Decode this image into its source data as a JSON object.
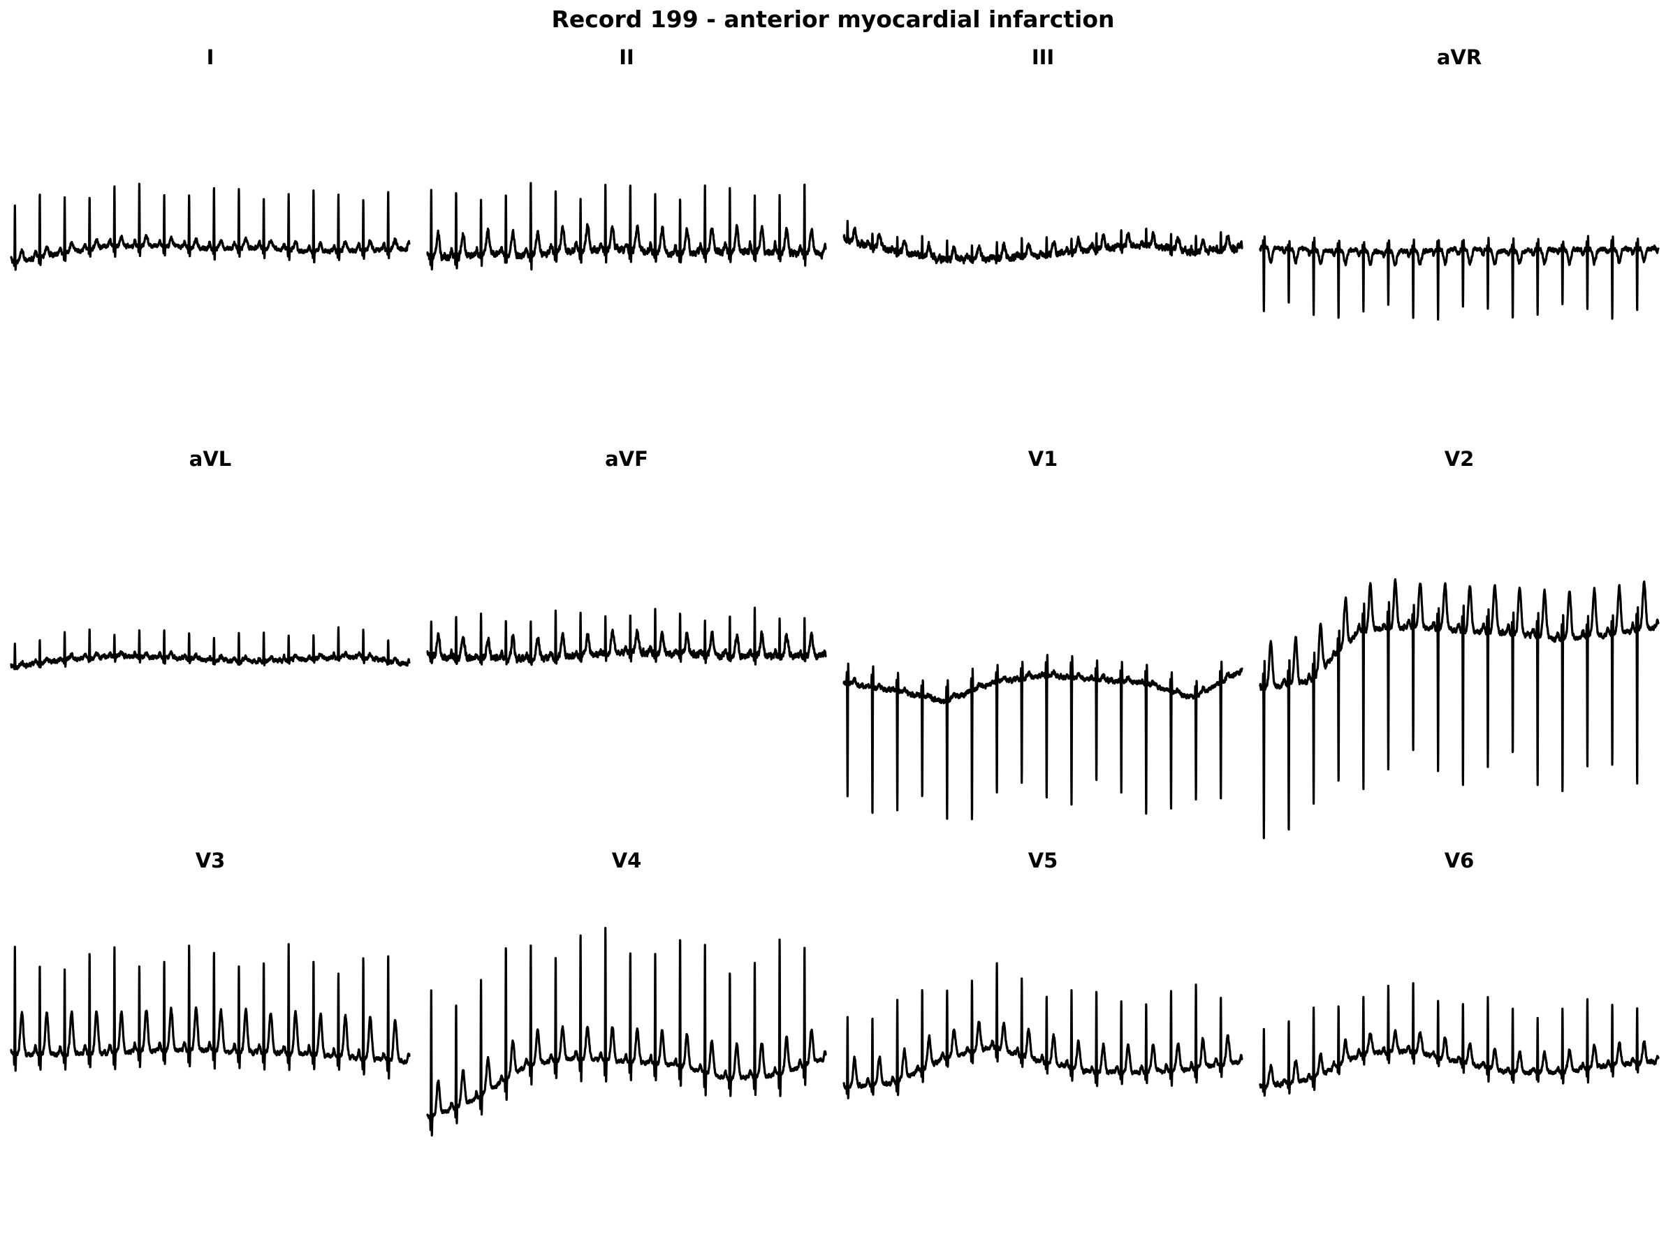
{
  "chart_data": {
    "type": "line",
    "title": "Record 199 - anterior myocardial infarction",
    "layout_grid": "3 rows x 4 columns",
    "axes_visible": false,
    "grid": false,
    "legend": "none",
    "trace_color": "#000000",
    "panels": [
      {
        "lead": "I",
        "qrs_sign": 1,
        "qrs_amp": 0.78,
        "baseline": [
          0.0,
          0.12,
          0.22,
          0.22,
          0.18,
          0.2,
          0.14,
          0.16,
          0.18
        ],
        "p_amp": 0.08,
        "t_amp": 0.12,
        "noise": 0.02,
        "ylim": [
          -2.3,
          2.4
        ]
      },
      {
        "lead": "II",
        "qrs_sign": 1,
        "qrs_amp": 0.85,
        "baseline": [
          0.0,
          0.05,
          0.04,
          0.1,
          0.12,
          0.06,
          0.1,
          0.08,
          0.06
        ],
        "p_amp": 0.1,
        "t_amp": 0.32,
        "noise": 0.03,
        "ylim": [
          -2.3,
          2.3
        ]
      },
      {
        "lead": "III",
        "qrs_sign": 1,
        "qrs_amp": 0.22,
        "baseline": [
          0.25,
          0.1,
          -0.02,
          0.0,
          0.04,
          0.12,
          0.18,
          0.08,
          0.14
        ],
        "p_amp": 0.04,
        "t_amp": 0.16,
        "noise": 0.03,
        "ylim": [
          -2.3,
          2.3
        ]
      },
      {
        "lead": "aVR",
        "qrs_sign": -1,
        "qrs_amp": 0.85,
        "baseline": [
          0.15,
          0.12,
          0.1,
          0.1,
          0.12,
          0.1,
          0.12,
          0.12,
          0.14
        ],
        "p_amp": -0.06,
        "t_amp": -0.18,
        "noise": 0.02,
        "ylim": [
          -2.3,
          2.3
        ]
      },
      {
        "lead": "aVL",
        "qrs_sign": 1,
        "qrs_amp": 0.35,
        "baseline": [
          -0.1,
          0.0,
          0.05,
          0.04,
          0.0,
          -0.02,
          0.02,
          0.04,
          -0.06
        ],
        "p_amp": 0.04,
        "t_amp": 0.05,
        "noise": 0.02,
        "ylim": [
          -2.3,
          2.3
        ]
      },
      {
        "lead": "aVF",
        "qrs_sign": 1,
        "qrs_amp": 0.55,
        "baseline": [
          0.05,
          0.02,
          0.02,
          0.05,
          0.1,
          0.08,
          0.06,
          0.05,
          0.06
        ],
        "p_amp": 0.06,
        "t_amp": 0.28,
        "noise": 0.03,
        "ylim": [
          -2.3,
          2.3
        ]
      },
      {
        "lead": "V1",
        "qrs_sign": -1,
        "qrs_amp": 1.55,
        "baseline": [
          0.05,
          -0.05,
          -0.2,
          0.05,
          0.15,
          0.1,
          0.05,
          -0.15,
          0.2
        ],
        "p_amp": 0.02,
        "t_amp": 0.05,
        "noise": 0.02,
        "ylim": [
          -1.9,
          2.6
        ]
      },
      {
        "lead": "V2",
        "qrs_sign": -1,
        "qrs_amp": 1.7,
        "baseline": [
          -0.4,
          -0.3,
          0.3,
          0.35,
          0.3,
          0.28,
          0.2,
          0.25,
          0.35
        ],
        "p_amp": 0.08,
        "t_amp": 0.55,
        "noise": 0.02,
        "ylim": [
          -2.1,
          2.0
        ]
      },
      {
        "lead": "V3",
        "qrs_sign": 1,
        "qrs_amp": 1.3,
        "baseline": [
          0.0,
          0.0,
          0.02,
          0.05,
          0.05,
          0.02,
          0.0,
          -0.05,
          -0.1
        ],
        "p_amp": 0.1,
        "t_amp": 0.55,
        "noise": 0.02,
        "ylim": [
          -2.4,
          2.2
        ]
      },
      {
        "lead": "V4",
        "qrs_sign": 1,
        "qrs_amp": 1.8,
        "baseline": [
          -0.8,
          -0.5,
          0.0,
          0.1,
          0.05,
          0.0,
          -0.2,
          -0.15,
          0.1
        ],
        "p_amp": 0.1,
        "t_amp": 0.5,
        "noise": 0.02,
        "ylim": [
          -2.5,
          2.6
        ]
      },
      {
        "lead": "V5",
        "qrs_sign": 1,
        "qrs_amp": 1.05,
        "baseline": [
          -0.3,
          -0.25,
          0.1,
          0.25,
          0.05,
          -0.1,
          -0.1,
          -0.05,
          0.05
        ],
        "p_amp": 0.08,
        "t_amp": 0.38,
        "noise": 0.02,
        "ylim": [
          -2.3,
          2.4
        ]
      },
      {
        "lead": "V6",
        "qrs_sign": 1,
        "qrs_amp": 0.88,
        "baseline": [
          -0.3,
          -0.2,
          0.15,
          0.2,
          0.05,
          -0.1,
          -0.1,
          0.0,
          0.05
        ],
        "p_amp": 0.06,
        "t_amp": 0.28,
        "noise": 0.02,
        "ylim": [
          -2.3,
          2.4
        ]
      }
    ]
  }
}
